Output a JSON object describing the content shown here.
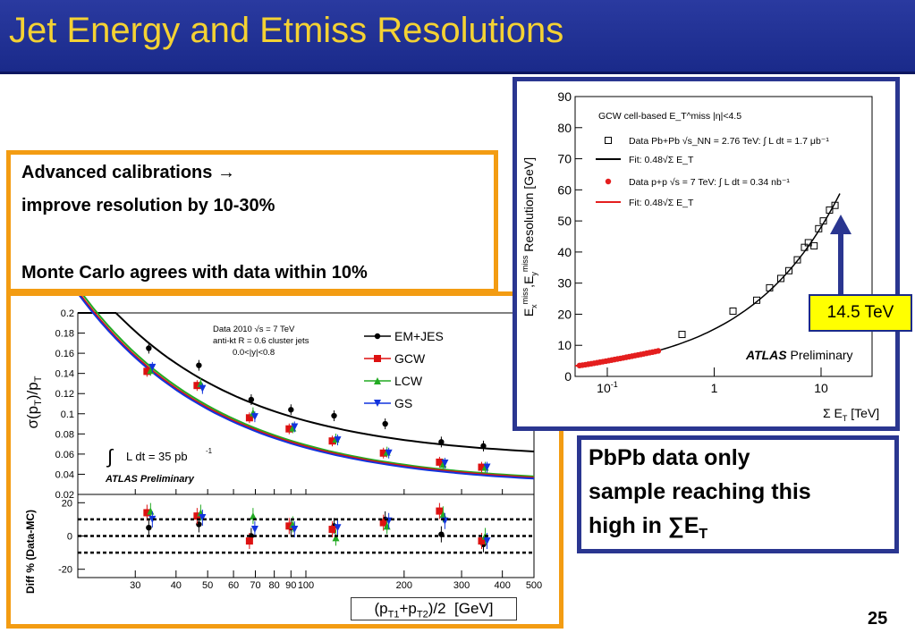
{
  "slide": {
    "title": "Jet Energy and Etmiss Resolutions",
    "page_number": "25"
  },
  "textbox": {
    "line1": "Advanced calibrations →",
    "line2": "improve resolution by 10-30%",
    "line3": "Monte Carlo agrees with data within 10%"
  },
  "pbpb_box": {
    "line1": "PbPb data only",
    "line2": "sample reaching this",
    "line3": "high in ∑E",
    "line3_sub": "T"
  },
  "arrow_label": "14.5 TeV",
  "colors": {
    "title_bar": "#1a2a8a",
    "title_text": "#f4d233",
    "orange_frame": "#f39c12",
    "navy_frame": "#2a3690",
    "label_bg": "#ffff00"
  },
  "chart_data": [
    {
      "type": "scatter",
      "xscale": "log",
      "xlim": [
        20,
        500
      ],
      "ylim": [
        0.02,
        0.2
      ],
      "ylabel": "σ(p_T)/p_T",
      "xlabel": "(p_T1+p_T2)/2 [GeV]",
      "yticks": [
        "0.02",
        "0.04",
        "0.06",
        "0.08",
        "0.1",
        "0.12",
        "0.14",
        "0.16",
        "0.18",
        "0.2"
      ],
      "xticks": [
        "30",
        "40",
        "50",
        "60",
        "70",
        "80",
        "90",
        "100",
        "200",
        "300",
        "400",
        "500"
      ],
      "annotation_lines": [
        "Data 2010 √s = 7 TeV",
        "anti-kt R = 0.6 cluster jets",
        "0.0<|y|<0.8"
      ],
      "lumi_text": "L dt = 35 pb",
      "lumi_sup": "-1",
      "brand_text": "ATLAS Preliminary",
      "series": [
        {
          "name": "EM+JES",
          "color": "#000000",
          "marker": "circle",
          "x": [
            33,
            47,
            68,
            90,
            122,
            175,
            260,
            350
          ],
          "y": [
            0.165,
            0.148,
            0.114,
            0.104,
            0.098,
            0.09,
            0.072,
            0.068
          ],
          "fit": [
            0.185,
            0.152,
            0.123,
            0.107,
            0.094,
            0.083,
            0.074,
            0.068
          ]
        },
        {
          "name": "GCW",
          "color": "#dd1111",
          "marker": "square",
          "x": [
            33,
            47,
            68,
            90,
            122,
            175,
            260,
            350
          ],
          "y": [
            0.142,
            0.128,
            0.096,
            0.085,
            0.073,
            0.061,
            0.052,
            0.047
          ]
        },
        {
          "name": "LCW",
          "color": "#22aa22",
          "marker": "triangle-up",
          "x": [
            33,
            47,
            68,
            90,
            122,
            175,
            260,
            350
          ],
          "y": [
            0.143,
            0.13,
            0.101,
            0.086,
            0.075,
            0.062,
            0.05,
            0.047
          ]
        },
        {
          "name": "GS",
          "color": "#1133dd",
          "marker": "triangle-down",
          "x": [
            33,
            47,
            68,
            90,
            122,
            175,
            260,
            350
          ],
          "y": [
            0.146,
            0.125,
            0.097,
            0.087,
            0.074,
            0.061,
            0.051,
            0.047
          ]
        }
      ],
      "ratio_panel": {
        "ylabel": "Diff % (Data-MC)",
        "ylim": [
          -25,
          25
        ],
        "yticks": [
          "20",
          "0",
          "-20"
        ],
        "dashed_lines": [
          10,
          0,
          -10
        ],
        "series": [
          {
            "name": "EM+JES",
            "y": [
              5,
              7,
              0,
              5,
              6,
              10,
              1,
              -5
            ]
          },
          {
            "name": "GCW",
            "y": [
              14,
              12,
              -3,
              6,
              4,
              8,
              15,
              -3
            ]
          },
          {
            "name": "LCW",
            "y": [
              15,
              14,
              12,
              7,
              -1,
              6,
              13,
              0
            ]
          },
          {
            "name": "GS",
            "y": [
              10,
              11,
              4,
              4,
              5,
              9,
              9,
              -3
            ]
          }
        ]
      }
    },
    {
      "type": "scatter",
      "xscale": "log",
      "xlim": [
        0.05,
        30
      ],
      "ylim": [
        0,
        90
      ],
      "xlabel": "Σ E_T [TeV]",
      "ylabel": "E_x^miss, E_y^miss Resolution [GeV]",
      "yticks": [
        "0",
        "10",
        "20",
        "30",
        "40",
        "50",
        "60",
        "70",
        "80",
        "90"
      ],
      "xticks": [
        "10^-1",
        "1",
        "10"
      ],
      "legend_title": "GCW cell-based E_T^miss |η|<4.5",
      "legend": [
        "Data Pb+Pb √s_NN = 2.76 TeV: ∫ L dt = 1.7 μb⁻¹",
        "Fit: 0.48√Σ E_T",
        "Data p+p √s = 7 TeV: ∫ L dt = 0.34 nb⁻¹",
        "Fit: 0.48√Σ E_T"
      ],
      "brand_text": "ATLAS Preliminary",
      "fit_coefficient": 0.48,
      "series": [
        {
          "name": "Data Pb+Pb",
          "color": "#000000",
          "marker": "open-square",
          "x": [
            0.5,
            1.5,
            2.5,
            3.3,
            4.2,
            5.0,
            6.0,
            7.0,
            7.6,
            8.6,
            9.5,
            10.5,
            12.0,
            13.5
          ],
          "y": [
            13.5,
            21,
            24.5,
            28.5,
            31.5,
            34,
            37.5,
            41.5,
            43,
            42,
            47.5,
            50,
            53.5,
            55
          ]
        },
        {
          "name": "Data p+p",
          "color": "#e41e1e",
          "marker": "circle",
          "x_range": [
            0.055,
            0.3
          ],
          "y_range": [
            3.5,
            8.2
          ]
        }
      ]
    }
  ]
}
